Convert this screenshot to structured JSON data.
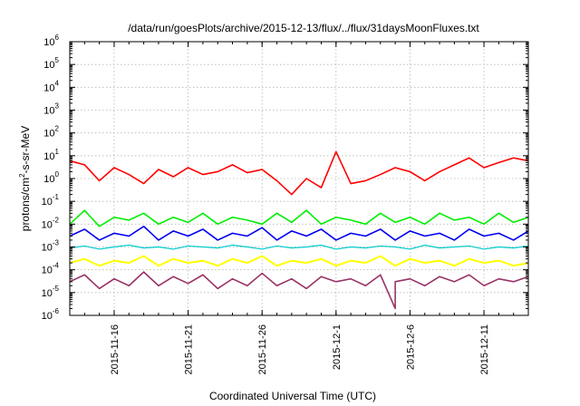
{
  "chart_data": {
    "type": "line",
    "title": "/data/run/goesPlots/archive/2015-12-13/flux/../flux/31daysMoonFluxes.txt",
    "xlabel": "Coordinated Universal Time (UTC)",
    "ylabel": "protons/cm2-s-sr-MeV",
    "ylabel_parts": {
      "before": "protons/cm",
      "sup": "2",
      "after": "-s-sr-MeV"
    },
    "yscale": "log",
    "ylim": [
      1e-06,
      1000000.0
    ],
    "xlim": [
      "2015-11-13",
      "2015-12-14"
    ],
    "grid": true,
    "legend": "none",
    "y_ticks": [
      {
        "value": 1e-06,
        "base": "10",
        "exp": "-6"
      },
      {
        "value": 1e-05,
        "base": "10",
        "exp": "-5"
      },
      {
        "value": 0.0001,
        "base": "10",
        "exp": "-4"
      },
      {
        "value": 0.001,
        "base": "10",
        "exp": "-3"
      },
      {
        "value": 0.01,
        "base": "10",
        "exp": "-2"
      },
      {
        "value": 0.1,
        "base": "10",
        "exp": "-1"
      },
      {
        "value": 1,
        "base": "10",
        "exp": "0"
      },
      {
        "value": 10,
        "base": "10",
        "exp": "1"
      },
      {
        "value": 100,
        "base": "10",
        "exp": "2"
      },
      {
        "value": 1000,
        "base": "10",
        "exp": "3"
      },
      {
        "value": 10000,
        "base": "10",
        "exp": "4"
      },
      {
        "value": 100000,
        "base": "10",
        "exp": "5"
      },
      {
        "value": 1000000,
        "base": "10",
        "exp": "6"
      }
    ],
    "x_ticks": [
      "2015-11-16",
      "2015-11-21",
      "2015-11-26",
      "2015-12-1",
      "2015-12-6",
      "2015-12-11"
    ],
    "series": [
      {
        "color": "#ff0000",
        "stroke_width": 1.6,
        "x": [
          "2015-11-13",
          "2015-11-14",
          "2015-11-15",
          "2015-11-16",
          "2015-11-17",
          "2015-11-18",
          "2015-11-19",
          "2015-11-20",
          "2015-11-21",
          "2015-11-22",
          "2015-11-23",
          "2015-11-24",
          "2015-11-25",
          "2015-11-26",
          "2015-11-27",
          "2015-11-28",
          "2015-11-29",
          "2015-11-30",
          "2015-12-1",
          "2015-12-2",
          "2015-12-3",
          "2015-12-4",
          "2015-12-5",
          "2015-12-6",
          "2015-12-7",
          "2015-12-8",
          "2015-12-9",
          "2015-12-10",
          "2015-12-11",
          "2015-12-12",
          "2015-12-13",
          "2015-12-14"
        ],
        "values": [
          6,
          4,
          0.8,
          3,
          1.5,
          0.6,
          2.5,
          1.2,
          3,
          1.5,
          2,
          4,
          1.8,
          2.5,
          0.8,
          0.2,
          1,
          0.4,
          15,
          0.6,
          0.8,
          1.5,
          3,
          2,
          0.8,
          2,
          4,
          8,
          3,
          5,
          8,
          6
        ]
      },
      {
        "color": "#00ee00",
        "stroke_width": 1.6,
        "x": [
          "2015-11-13",
          "2015-11-14",
          "2015-11-15",
          "2015-11-16",
          "2015-11-17",
          "2015-11-18",
          "2015-11-19",
          "2015-11-20",
          "2015-11-21",
          "2015-11-22",
          "2015-11-23",
          "2015-11-24",
          "2015-11-25",
          "2015-11-26",
          "2015-11-27",
          "2015-11-28",
          "2015-11-29",
          "2015-11-30",
          "2015-12-1",
          "2015-12-2",
          "2015-12-3",
          "2015-12-4",
          "2015-12-5",
          "2015-12-6",
          "2015-12-7",
          "2015-12-8",
          "2015-12-9",
          "2015-12-10",
          "2015-12-11",
          "2015-12-12",
          "2015-12-13",
          "2015-12-14"
        ],
        "values": [
          0.01,
          0.04,
          0.008,
          0.02,
          0.015,
          0.03,
          0.01,
          0.02,
          0.012,
          0.03,
          0.01,
          0.02,
          0.015,
          0.01,
          0.03,
          0.012,
          0.04,
          0.01,
          0.02,
          0.015,
          0.01,
          0.03,
          0.012,
          0.02,
          0.01,
          0.03,
          0.015,
          0.02,
          0.01,
          0.03,
          0.012,
          0.02
        ]
      },
      {
        "color": "#0000ee",
        "stroke_width": 1.6,
        "x": [
          "2015-11-13",
          "2015-11-14",
          "2015-11-15",
          "2015-11-16",
          "2015-11-17",
          "2015-11-18",
          "2015-11-19",
          "2015-11-20",
          "2015-11-21",
          "2015-11-22",
          "2015-11-23",
          "2015-11-24",
          "2015-11-25",
          "2015-11-26",
          "2015-11-27",
          "2015-11-28",
          "2015-11-29",
          "2015-11-30",
          "2015-12-1",
          "2015-12-2",
          "2015-12-3",
          "2015-12-4",
          "2015-12-5",
          "2015-12-6",
          "2015-12-7",
          "2015-12-8",
          "2015-12-9",
          "2015-12-10",
          "2015-12-11",
          "2015-12-12",
          "2015-12-13",
          "2015-12-14"
        ],
        "values": [
          0.003,
          0.006,
          0.002,
          0.004,
          0.003,
          0.008,
          0.002,
          0.005,
          0.003,
          0.006,
          0.002,
          0.004,
          0.003,
          0.007,
          0.002,
          0.005,
          0.003,
          0.006,
          0.002,
          0.004,
          0.003,
          0.006,
          0.002,
          0.005,
          0.003,
          0.004,
          0.002,
          0.006,
          0.003,
          0.004,
          0.002,
          0.005
        ]
      },
      {
        "color": "#00cccc",
        "stroke_width": 1.2,
        "x": [
          "2015-11-13",
          "2015-11-14",
          "2015-11-15",
          "2015-11-16",
          "2015-11-17",
          "2015-11-18",
          "2015-11-19",
          "2015-11-20",
          "2015-11-21",
          "2015-11-22",
          "2015-11-23",
          "2015-11-24",
          "2015-11-25",
          "2015-11-26",
          "2015-11-27",
          "2015-11-28",
          "2015-11-29",
          "2015-11-30",
          "2015-12-1",
          "2015-12-2",
          "2015-12-3",
          "2015-12-4",
          "2015-12-5",
          "2015-12-6",
          "2015-12-7",
          "2015-12-8",
          "2015-12-9",
          "2015-12-10",
          "2015-12-11",
          "2015-12-12",
          "2015-12-13",
          "2015-12-14"
        ],
        "values": [
          0.0009,
          0.0011,
          0.0008,
          0.001,
          0.0012,
          0.0009,
          0.001,
          0.0008,
          0.0011,
          0.001,
          0.0009,
          0.0012,
          0.001,
          0.0008,
          0.0011,
          0.0009,
          0.001,
          0.0012,
          0.0008,
          0.001,
          0.0009,
          0.0011,
          0.001,
          0.0008,
          0.0012,
          0.0009,
          0.001,
          0.0011,
          0.0008,
          0.001,
          0.0009,
          0.0011
        ]
      },
      {
        "color": "#ffff00",
        "stroke_width": 2.0,
        "x": [
          "2015-11-13",
          "2015-11-14",
          "2015-11-15",
          "2015-11-16",
          "2015-11-17",
          "2015-11-18",
          "2015-11-19",
          "2015-11-20",
          "2015-11-21",
          "2015-11-22",
          "2015-11-23",
          "2015-11-24",
          "2015-11-25",
          "2015-11-26",
          "2015-11-27",
          "2015-11-28",
          "2015-11-29",
          "2015-11-30",
          "2015-12-1",
          "2015-12-2",
          "2015-12-3",
          "2015-12-4",
          "2015-12-5",
          "2015-12-6",
          "2015-12-7",
          "2015-12-8",
          "2015-12-9",
          "2015-12-10",
          "2015-12-11",
          "2015-12-12",
          "2015-12-13",
          "2015-12-14"
        ],
        "values": [
          0.0002,
          0.0003,
          0.00015,
          0.00025,
          0.0002,
          0.0004,
          0.00015,
          0.0003,
          0.0002,
          0.00025,
          0.00015,
          0.0003,
          0.0002,
          0.0004,
          0.00015,
          0.00025,
          0.0002,
          0.0003,
          0.00015,
          0.00025,
          0.0002,
          0.0004,
          0.00015,
          0.0003,
          0.0002,
          0.00025,
          0.00015,
          0.0003,
          0.0002,
          0.00025,
          0.00015,
          0.0002
        ]
      },
      {
        "color": "#993366",
        "stroke_width": 1.6,
        "x": [
          "2015-11-13",
          "2015-11-14",
          "2015-11-15",
          "2015-11-16",
          "2015-11-17",
          "2015-11-18",
          "2015-11-19",
          "2015-11-20",
          "2015-11-21",
          "2015-11-22",
          "2015-11-23",
          "2015-11-24",
          "2015-11-25",
          "2015-11-26",
          "2015-11-27",
          "2015-11-28",
          "2015-11-29",
          "2015-11-30",
          "2015-12-1",
          "2015-12-2",
          "2015-12-3",
          "2015-12-4",
          "2015-12-5",
          "2015-12-5",
          "2015-12-6",
          "2015-12-7",
          "2015-12-8",
          "2015-12-9",
          "2015-12-10",
          "2015-12-11",
          "2015-12-12",
          "2015-12-13",
          "2015-12-14"
        ],
        "values": [
          3e-05,
          6e-05,
          1.5e-05,
          4e-05,
          2e-05,
          8e-05,
          2e-05,
          5e-05,
          2.5e-05,
          6e-05,
          1.5e-05,
          4e-05,
          2e-05,
          7e-05,
          2e-05,
          4e-05,
          1.5e-05,
          5e-05,
          3e-05,
          4e-05,
          2e-05,
          6e-05,
          2e-06,
          3e-05,
          4e-05,
          2e-05,
          5e-05,
          3e-05,
          6e-05,
          2e-05,
          4e-05,
          3e-05,
          5e-05
        ]
      }
    ]
  }
}
